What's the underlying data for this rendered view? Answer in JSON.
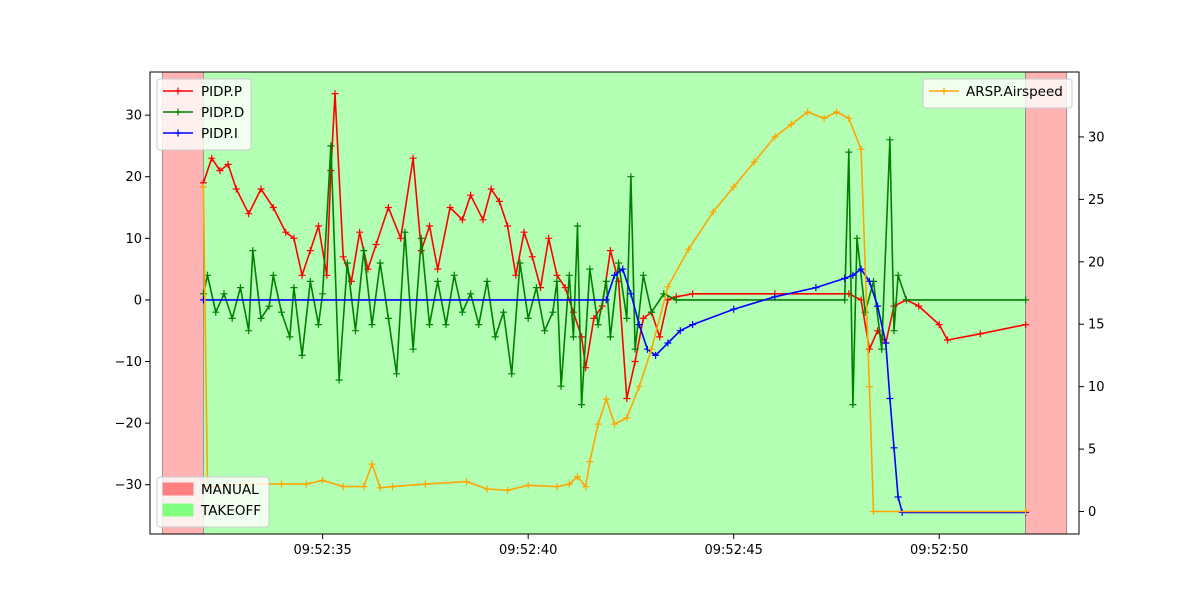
{
  "chart_data": {
    "type": "line",
    "x_unit": "time",
    "xlim": [
      "09:52:30.8",
      "09:52:53.4"
    ],
    "x_ticks": [
      "09:52:35",
      "09:52:40",
      "09:52:45",
      "09:52:50"
    ],
    "y_left_lim": [
      -38,
      37
    ],
    "y_left_ticks": [
      30,
      20,
      10,
      0,
      -10,
      -20,
      -30
    ],
    "y_right_lim": [
      -1.8,
      35.2
    ],
    "y_right_ticks": [
      0,
      5,
      10,
      15,
      20,
      25,
      30
    ],
    "grid": false,
    "mode_bands": [
      {
        "name": "MANUAL",
        "start": "09:52:31.1",
        "end": "09:52:32.1",
        "color": "#ffb3b3"
      },
      {
        "name": "TAKEOFF",
        "start": "09:52:32.1",
        "end": "09:52:52.1",
        "color": "#b3ffb3"
      },
      {
        "name": "MANUAL",
        "start": "09:52:52.1",
        "end": "09:52:53.1",
        "color": "#ffb3b3"
      }
    ],
    "legend_left_top": {
      "placement": "top-left",
      "entries": [
        "PIDP.P",
        "PIDP.D",
        "PIDP.I"
      ]
    },
    "legend_right_top": {
      "placement": "top-right",
      "entries": [
        "ARSP.Airspeed"
      ]
    },
    "legend_modes": {
      "placement": "bottom-left",
      "entries": [
        {
          "label": "MANUAL",
          "color": "#ff8080"
        },
        {
          "label": "TAKEOFF",
          "color": "#80ff80"
        }
      ]
    },
    "series": [
      {
        "name": "PIDP.P",
        "axis": "left",
        "color": "#ff0000",
        "points": [
          [
            "09:52:32.1",
            19
          ],
          [
            "09:52:32.3",
            23
          ],
          [
            "09:52:32.5",
            21
          ],
          [
            "09:52:32.7",
            22
          ],
          [
            "09:52:32.9",
            18
          ],
          [
            "09:52:33.2",
            14
          ],
          [
            "09:52:33.5",
            18
          ],
          [
            "09:52:33.8",
            15
          ],
          [
            "09:52:34.1",
            11
          ],
          [
            "09:52:34.3",
            10
          ],
          [
            "09:52:34.5",
            4
          ],
          [
            "09:52:34.7",
            8
          ],
          [
            "09:52:34.9",
            12
          ],
          [
            "09:52:35.1",
            4
          ],
          [
            "09:52:35.2",
            21
          ],
          [
            "09:52:35.3",
            33.5
          ],
          [
            "09:52:35.5",
            7
          ],
          [
            "09:52:35.7",
            3
          ],
          [
            "09:52:35.9",
            11
          ],
          [
            "09:52:36.1",
            5
          ],
          [
            "09:52:36.3",
            9
          ],
          [
            "09:52:36.6",
            15
          ],
          [
            "09:52:36.9",
            10
          ],
          [
            "09:52:37.2",
            23
          ],
          [
            "09:52:37.4",
            8
          ],
          [
            "09:52:37.6",
            12
          ],
          [
            "09:52:37.8",
            5
          ],
          [
            "09:52:38.1",
            15
          ],
          [
            "09:52:38.4",
            13
          ],
          [
            "09:52:38.6",
            17
          ],
          [
            "09:52:38.9",
            13
          ],
          [
            "09:52:39.1",
            18
          ],
          [
            "09:52:39.3",
            16
          ],
          [
            "09:52:39.5",
            12
          ],
          [
            "09:52:39.7",
            4
          ],
          [
            "09:52:39.9",
            11
          ],
          [
            "09:52:40.1",
            7
          ],
          [
            "09:52:40.3",
            2
          ],
          [
            "09:52:40.5",
            10
          ],
          [
            "09:52:40.7",
            4
          ],
          [
            "09:52:40.9",
            2
          ],
          [
            "09:52:41.1",
            -2
          ],
          [
            "09:52:41.3",
            -6
          ],
          [
            "09:52:41.4",
            -11
          ],
          [
            "09:52:41.6",
            -3
          ],
          [
            "09:52:41.8",
            -1
          ],
          [
            "09:52:42.0",
            8
          ],
          [
            "09:52:42.2",
            3
          ],
          [
            "09:52:42.4",
            -16
          ],
          [
            "09:52:42.6",
            -10
          ],
          [
            "09:52:42.8",
            -3
          ],
          [
            "09:52:43.0",
            -2
          ],
          [
            "09:52:43.2",
            -6
          ],
          [
            "09:52:43.4",
            0
          ],
          [
            "09:52:43.6",
            0.5
          ],
          [
            "09:52:44.0",
            1
          ],
          [
            "09:52:46.0",
            1
          ],
          [
            "09:52:47.8",
            1
          ],
          [
            "09:52:48.1",
            0
          ],
          [
            "09:52:48.3",
            -8
          ],
          [
            "09:52:48.5",
            -5
          ],
          [
            "09:52:48.7",
            -7
          ],
          [
            "09:52:48.9",
            -1
          ],
          [
            "09:52:49.2",
            0
          ],
          [
            "09:52:49.5",
            -1
          ],
          [
            "09:52:50.0",
            -4
          ],
          [
            "09:52:50.2",
            -6.5
          ],
          [
            "09:52:51.0",
            -5.5
          ],
          [
            "09:52:52.1",
            -4
          ]
        ]
      },
      {
        "name": "PIDP.D",
        "axis": "left",
        "color": "#008000",
        "points": [
          [
            "09:52:32.1",
            1
          ],
          [
            "09:52:32.2",
            4
          ],
          [
            "09:52:32.4",
            -2
          ],
          [
            "09:52:32.6",
            1
          ],
          [
            "09:52:32.8",
            -3
          ],
          [
            "09:52:33.0",
            2
          ],
          [
            "09:52:33.2",
            -5
          ],
          [
            "09:52:33.3",
            8
          ],
          [
            "09:52:33.5",
            -3
          ],
          [
            "09:52:33.7",
            -1
          ],
          [
            "09:52:33.8",
            4
          ],
          [
            "09:52:34.0",
            -2
          ],
          [
            "09:52:34.2",
            -6
          ],
          [
            "09:52:34.3",
            2
          ],
          [
            "09:52:34.5",
            -9
          ],
          [
            "09:52:34.7",
            3
          ],
          [
            "09:52:34.9",
            -4
          ],
          [
            "09:52:35.0",
            1
          ],
          [
            "09:52:35.2",
            25
          ],
          [
            "09:52:35.4",
            -13
          ],
          [
            "09:52:35.6",
            6
          ],
          [
            "09:52:35.8",
            -5
          ],
          [
            "09:52:36.0",
            8
          ],
          [
            "09:52:36.2",
            -4
          ],
          [
            "09:52:36.4",
            6
          ],
          [
            "09:52:36.6",
            -3
          ],
          [
            "09:52:36.8",
            -12
          ],
          [
            "09:52:37.0",
            11
          ],
          [
            "09:52:37.2",
            -8
          ],
          [
            "09:52:37.4",
            10
          ],
          [
            "09:52:37.6",
            -4
          ],
          [
            "09:52:37.8",
            3
          ],
          [
            "09:52:38.0",
            -4
          ],
          [
            "09:52:38.2",
            4
          ],
          [
            "09:52:38.4",
            -2
          ],
          [
            "09:52:38.6",
            1
          ],
          [
            "09:52:38.8",
            -4
          ],
          [
            "09:52:39.0",
            3
          ],
          [
            "09:52:39.2",
            -6
          ],
          [
            "09:52:39.4",
            -2
          ],
          [
            "09:52:39.6",
            -12
          ],
          [
            "09:52:39.8",
            6
          ],
          [
            "09:52:40.0",
            -3
          ],
          [
            "09:52:40.2",
            2
          ],
          [
            "09:52:40.4",
            -5
          ],
          [
            "09:52:40.6",
            -2
          ],
          [
            "09:52:40.7",
            3
          ],
          [
            "09:52:40.8",
            -14
          ],
          [
            "09:52:41.0",
            4
          ],
          [
            "09:52:41.1",
            -6
          ],
          [
            "09:52:41.2",
            12
          ],
          [
            "09:52:41.3",
            -17
          ],
          [
            "09:52:41.5",
            5
          ],
          [
            "09:52:41.7",
            -4
          ],
          [
            "09:52:41.9",
            3
          ],
          [
            "09:52:42.0",
            -6
          ],
          [
            "09:52:42.2",
            6
          ],
          [
            "09:52:42.4",
            -3
          ],
          [
            "09:52:42.5",
            20
          ],
          [
            "09:52:42.6",
            -8
          ],
          [
            "09:52:42.8",
            4
          ],
          [
            "09:52:43.0",
            -2
          ],
          [
            "09:52:43.3",
            1
          ],
          [
            "09:52:43.6",
            0
          ],
          [
            "09:52:47.7",
            0
          ],
          [
            "09:52:47.8",
            24
          ],
          [
            "09:52:47.9",
            -17
          ],
          [
            "09:52:48.0",
            10
          ],
          [
            "09:52:48.2",
            -2
          ],
          [
            "09:52:48.4",
            3
          ],
          [
            "09:52:48.6",
            -8
          ],
          [
            "09:52:48.8",
            26
          ],
          [
            "09:52:48.9",
            -5
          ],
          [
            "09:52:49.0",
            4
          ],
          [
            "09:52:49.2",
            0
          ],
          [
            "09:52:52.1",
            0
          ]
        ]
      },
      {
        "name": "PIDP.I",
        "axis": "left",
        "color": "#0000ff",
        "points": [
          [
            "09:52:32.1",
            0
          ],
          [
            "09:52:41.9",
            0
          ],
          [
            "09:52:42.1",
            4
          ],
          [
            "09:52:42.3",
            5
          ],
          [
            "09:52:42.5",
            1
          ],
          [
            "09:52:42.7",
            -4
          ],
          [
            "09:52:42.9",
            -8
          ],
          [
            "09:52:43.1",
            -9
          ],
          [
            "09:52:43.4",
            -7
          ],
          [
            "09:52:43.7",
            -5
          ],
          [
            "09:52:44.0",
            -4
          ],
          [
            "09:52:45.0",
            -1.5
          ],
          [
            "09:52:46.0",
            0.5
          ],
          [
            "09:52:47.0",
            2
          ],
          [
            "09:52:47.7",
            3.5
          ],
          [
            "09:52:47.9",
            4
          ],
          [
            "09:52:48.1",
            5
          ],
          [
            "09:52:48.3",
            3
          ],
          [
            "09:52:48.5",
            -1
          ],
          [
            "09:52:48.7",
            -7
          ],
          [
            "09:52:48.8",
            -16
          ],
          [
            "09:52:48.9",
            -24
          ],
          [
            "09:52:49.0",
            -32
          ],
          [
            "09:52:49.1",
            -34.5
          ],
          [
            "09:52:52.1",
            -34.5
          ]
        ]
      },
      {
        "name": "ARSP.Airspeed",
        "axis": "right",
        "color": "#ffa500",
        "points": [
          [
            "09:52:32.1",
            26
          ],
          [
            "09:52:32.2",
            1.9
          ],
          [
            "09:52:33.0",
            2.2
          ],
          [
            "09:52:34.0",
            2.2
          ],
          [
            "09:52:34.6",
            2.2
          ],
          [
            "09:52:35.0",
            2.5
          ],
          [
            "09:52:35.5",
            2.0
          ],
          [
            "09:52:36.0",
            2.0
          ],
          [
            "09:52:36.2",
            3.8
          ],
          [
            "09:52:36.4",
            1.9
          ],
          [
            "09:52:36.7",
            2.0
          ],
          [
            "09:52:37.5",
            2.2
          ],
          [
            "09:52:38.5",
            2.4
          ],
          [
            "09:52:39.0",
            1.8
          ],
          [
            "09:52:39.5",
            1.7
          ],
          [
            "09:52:40.0",
            2.1
          ],
          [
            "09:52:40.7",
            2.0
          ],
          [
            "09:52:41.0",
            2.2
          ],
          [
            "09:52:41.2",
            2.8
          ],
          [
            "09:52:41.4",
            2.0
          ],
          [
            "09:52:41.5",
            4
          ],
          [
            "09:52:41.7",
            7
          ],
          [
            "09:52:41.9",
            9
          ],
          [
            "09:52:42.1",
            7
          ],
          [
            "09:52:42.4",
            7.5
          ],
          [
            "09:52:42.7",
            10
          ],
          [
            "09:52:43.0",
            13
          ],
          [
            "09:52:43.4",
            18
          ],
          [
            "09:52:43.9",
            21
          ],
          [
            "09:52:44.5",
            24
          ],
          [
            "09:52:45.0",
            26
          ],
          [
            "09:52:45.5",
            28
          ],
          [
            "09:52:46.0",
            30
          ],
          [
            "09:52:46.4",
            31
          ],
          [
            "09:52:46.8",
            32
          ],
          [
            "09:52:47.2",
            31.5
          ],
          [
            "09:52:47.5",
            32
          ],
          [
            "09:52:47.8",
            31.5
          ],
          [
            "09:52:48.1",
            29
          ],
          [
            "09:52:48.3",
            10
          ],
          [
            "09:52:48.4",
            0
          ],
          [
            "09:52:52.1",
            0
          ]
        ]
      }
    ]
  }
}
